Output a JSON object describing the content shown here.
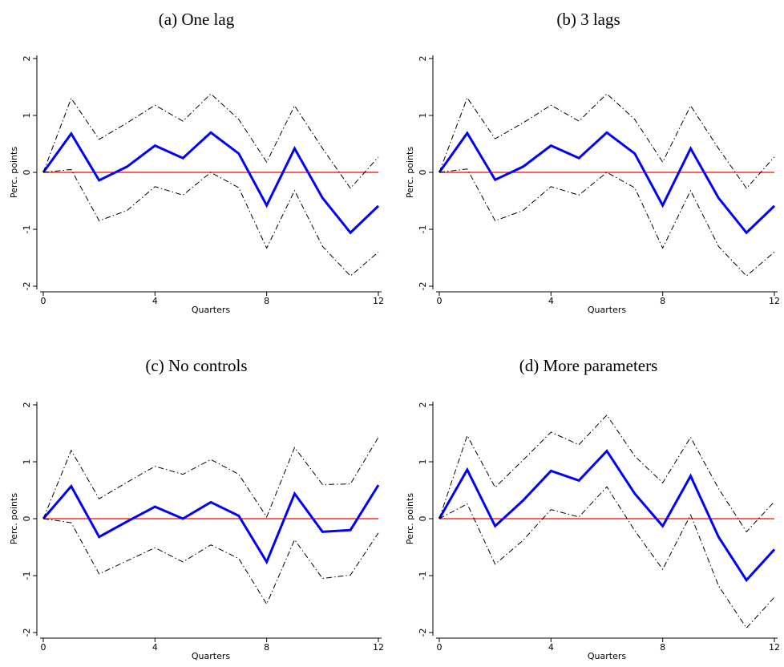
{
  "chart_data": [
    {
      "type": "line",
      "title": "(a) One lag",
      "xlabel": "Quarters",
      "ylabel": "Perc. points",
      "x": [
        0,
        1,
        2,
        3,
        4,
        5,
        6,
        7,
        8,
        9,
        10,
        11,
        12
      ],
      "xlim": [
        0,
        12
      ],
      "xticks": [
        0,
        4,
        8,
        12
      ],
      "ylim": [
        -2,
        2
      ],
      "yticks": [
        -2,
        -1,
        0,
        1,
        2
      ],
      "hline": 0,
      "hline_color": "#ff0000",
      "series": [
        {
          "color": "#0000ff",
          "dash": "solid",
          "values": [
            0,
            0.68,
            -0.14,
            0.1,
            0.47,
            0.25,
            0.7,
            0.33,
            -0.58,
            0.42,
            -0.45,
            -1.06,
            -0.59
          ]
        },
        {
          "color": "#000000",
          "dash": "dashdot",
          "values": [
            0,
            1.3,
            0.58,
            0.87,
            1.18,
            0.9,
            1.38,
            0.93,
            0.18,
            1.17,
            0.42,
            -0.28,
            0.27
          ]
        },
        {
          "color": "#000000",
          "dash": "dashdot",
          "values": [
            0,
            0.05,
            -0.85,
            -0.67,
            -0.25,
            -0.4,
            0,
            -0.27,
            -1.33,
            -0.32,
            -1.3,
            -1.82,
            -1.4
          ]
        }
      ]
    },
    {
      "type": "line",
      "title": "(b) 3 lags",
      "xlabel": "Quarters",
      "ylabel": "Perc. points",
      "x": [
        0,
        1,
        2,
        3,
        4,
        5,
        6,
        7,
        8,
        9,
        10,
        11,
        12
      ],
      "xlim": [
        0,
        12
      ],
      "xticks": [
        0,
        4,
        8,
        12
      ],
      "ylim": [
        -2,
        2
      ],
      "yticks": [
        -2,
        -1,
        0,
        1,
        2
      ],
      "hline": 0,
      "hline_color": "#ff0000",
      "series": [
        {
          "color": "#0000ff",
          "dash": "solid",
          "values": [
            0,
            0.69,
            -0.13,
            0.1,
            0.47,
            0.25,
            0.7,
            0.33,
            -0.58,
            0.42,
            -0.45,
            -1.06,
            -0.59
          ]
        },
        {
          "color": "#000000",
          "dash": "dashdot",
          "values": [
            0,
            1.31,
            0.59,
            0.87,
            1.18,
            0.9,
            1.38,
            0.93,
            0.18,
            1.17,
            0.42,
            -0.28,
            0.27
          ]
        },
        {
          "color": "#000000",
          "dash": "dashdot",
          "values": [
            0,
            0.06,
            -0.85,
            -0.67,
            -0.25,
            -0.4,
            0,
            -0.27,
            -1.33,
            -0.32,
            -1.3,
            -1.82,
            -1.4
          ]
        }
      ]
    },
    {
      "type": "line",
      "title": "(c) No controls",
      "xlabel": "Quarters",
      "ylabel": "Perc. points",
      "x": [
        0,
        1,
        2,
        3,
        4,
        5,
        6,
        7,
        8,
        9,
        10,
        11,
        12
      ],
      "xlim": [
        0,
        12
      ],
      "xticks": [
        0,
        4,
        8,
        12
      ],
      "ylim": [
        -2,
        2
      ],
      "yticks": [
        -2,
        -1,
        0,
        1,
        2
      ],
      "hline": 0,
      "hline_color": "#ff0000",
      "series": [
        {
          "color": "#0000ff",
          "dash": "solid",
          "values": [
            0,
            0.57,
            -0.32,
            -0.05,
            0.21,
            0,
            0.29,
            0.05,
            -0.76,
            0.44,
            -0.23,
            -0.2,
            0.59
          ]
        },
        {
          "color": "#000000",
          "dash": "dashdot",
          "values": [
            0,
            1.2,
            0.35,
            0.64,
            0.92,
            0.78,
            1.04,
            0.78,
            0.03,
            1.25,
            0.6,
            0.61,
            1.43
          ]
        },
        {
          "color": "#000000",
          "dash": "dashdot",
          "values": [
            0,
            -0.07,
            -0.97,
            -0.74,
            -0.51,
            -0.76,
            -0.46,
            -0.7,
            -1.5,
            -0.37,
            -1.05,
            -0.99,
            -0.25
          ]
        }
      ]
    },
    {
      "type": "line",
      "title": "(d) More parameters",
      "xlabel": "Quarters",
      "ylabel": "Perc. points",
      "x": [
        0,
        1,
        2,
        3,
        4,
        5,
        6,
        7,
        8,
        9,
        10,
        11,
        12
      ],
      "xlim": [
        0,
        12
      ],
      "xticks": [
        0,
        4,
        8,
        12
      ],
      "ylim": [
        -2,
        2
      ],
      "yticks": [
        -2,
        -1,
        0,
        1,
        2
      ],
      "hline": 0,
      "hline_color": "#ff0000",
      "series": [
        {
          "color": "#0000ff",
          "dash": "solid",
          "values": [
            0,
            0.86,
            -0.13,
            0.32,
            0.84,
            0.67,
            1.19,
            0.44,
            -0.13,
            0.75,
            -0.32,
            -1.08,
            -0.54
          ]
        },
        {
          "color": "#000000",
          "dash": "dashdot",
          "values": [
            0,
            1.46,
            0.55,
            1.03,
            1.52,
            1.3,
            1.82,
            1.1,
            0.63,
            1.43,
            0.53,
            -0.23,
            0.3
          ]
        },
        {
          "color": "#000000",
          "dash": "dashdot",
          "values": [
            0,
            0.26,
            -0.8,
            -0.38,
            0.16,
            0.03,
            0.56,
            -0.21,
            -0.89,
            0.07,
            -1.18,
            -1.92,
            -1.38
          ]
        }
      ]
    }
  ]
}
